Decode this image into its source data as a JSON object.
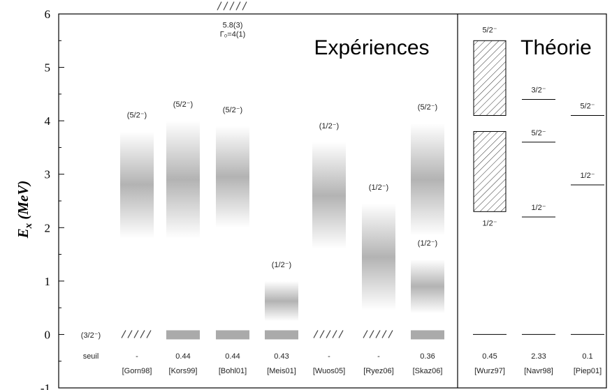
{
  "chart_data": {
    "type": "level-scheme",
    "ylabel": "E_x (MeV)",
    "ylabel_main": "E",
    "ylabel_sub": "x",
    "ylabel_unit": "(MeV)",
    "ylim": [
      -1,
      6
    ],
    "yticks": [
      "-1",
      "0",
      "1",
      "2",
      "3",
      "4",
      "5",
      "6"
    ],
    "sections": {
      "experiments": "Expériences",
      "theory": "Théorie"
    },
    "threshold": {
      "label": "seuil",
      "spin": "(3/2⁻)"
    },
    "experiments": [
      {
        "ref": "[Gorn98]",
        "value": "-",
        "ground": "hatched",
        "spin": "(5/2⁻)",
        "band": [
          1.8,
          3.8
        ]
      },
      {
        "ref": "[Kors99]",
        "value": "0.44",
        "ground": "bar",
        "spin": "(5/2⁻)",
        "band": [
          1.8,
          4.0
        ]
      },
      {
        "ref": "[Bohl01]",
        "value": "0.44",
        "ground": "bar",
        "spin": "(5/2⁻)",
        "band": [
          2.0,
          3.9
        ],
        "extra": {
          "energy": 5.8,
          "energy_label": "5.8(3)",
          "width_label": "Γ₀=4(1)"
        }
      },
      {
        "ref": "[Meis01]",
        "value": "0.43",
        "ground": "bar",
        "spin": "(1/2⁻)",
        "band": [
          0.25,
          1.0
        ]
      },
      {
        "ref": "[Wuos05]",
        "value": "-",
        "ground": "hatched",
        "spin": "(1/2⁻)",
        "band": [
          1.6,
          3.6
        ]
      },
      {
        "ref": "[Ryez06]",
        "value": "-",
        "ground": "hatched",
        "spin": "(1/2⁻)",
        "band": [
          0.45,
          2.45
        ]
      },
      {
        "ref": "[Skaz06]",
        "value": "0.36",
        "ground": "bar",
        "states": [
          {
            "spin": "(5/2⁻)",
            "band": [
              1.85,
              3.95
            ]
          },
          {
            "spin": "(1/2⁻)",
            "band": [
              0.4,
              1.4
            ]
          }
        ]
      }
    ],
    "theory": [
      {
        "ref": "[Wurz97]",
        "value": "0.45",
        "boxes": [
          {
            "spin": "5/2⁻",
            "range": [
              4.1,
              5.5
            ]
          },
          {
            "spin": "1/2⁻",
            "range": [
              2.3,
              3.8
            ]
          }
        ]
      },
      {
        "ref": "[Navr98]",
        "value": "2.33",
        "levels": [
          {
            "spin": "3/2⁻",
            "energy": 4.4
          },
          {
            "spin": "5/2⁻",
            "energy": 3.6
          },
          {
            "spin": "1/2⁻",
            "energy": 2.2
          }
        ]
      },
      {
        "ref": "[Piep01]",
        "value": "0.1",
        "levels": [
          {
            "spin": "5/2⁻",
            "energy": 4.1
          },
          {
            "spin": "1/2⁻",
            "energy": 2.8
          }
        ]
      }
    ]
  }
}
